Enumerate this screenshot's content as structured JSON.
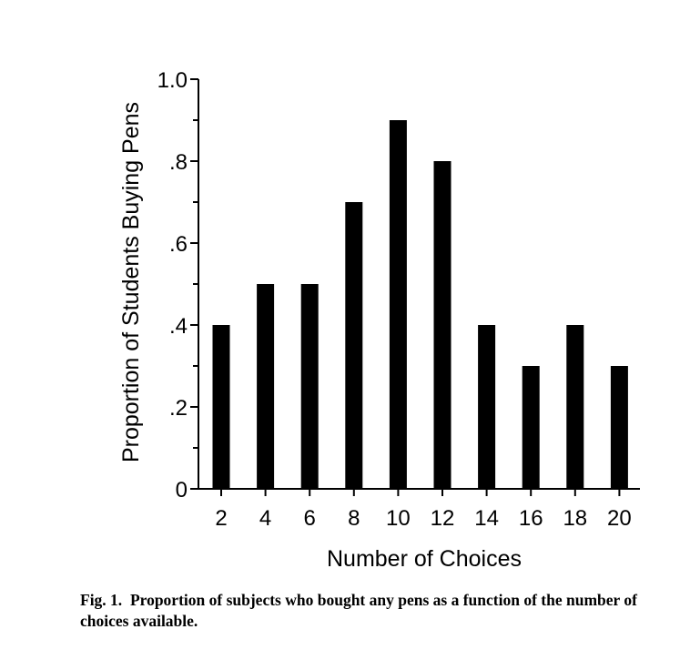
{
  "chart_data": {
    "type": "bar",
    "categories": [
      "2",
      "4",
      "6",
      "8",
      "10",
      "12",
      "14",
      "16",
      "18",
      "20"
    ],
    "values": [
      0.4,
      0.5,
      0.5,
      0.7,
      0.9,
      0.8,
      0.4,
      0.3,
      0.4,
      0.3
    ],
    "xlabel": "Number of Choices",
    "ylabel": "Proportion of Students Buying Pens",
    "ylim": [
      0,
      1.0
    ],
    "yticks": [
      0,
      0.2,
      0.4,
      0.6,
      0.8,
      1.0
    ],
    "ytick_labels": [
      "0",
      ".2",
      ".4",
      ".6",
      ".8",
      "1.0"
    ],
    "bar_color": "#000000",
    "grid": false,
    "legend": "none"
  },
  "caption": {
    "label": "Fig. 1.",
    "text": "Proportion of subjects who bought any pens as a function of the number of choices available."
  }
}
